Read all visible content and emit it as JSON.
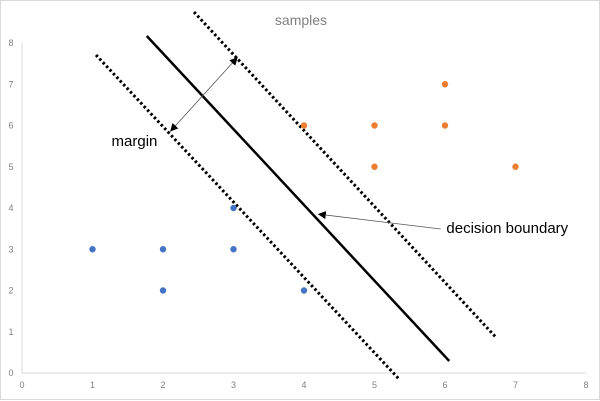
{
  "chart_data": {
    "type": "scatter",
    "title": "samples",
    "xlabel": "",
    "ylabel": "",
    "xlim": [
      0,
      8
    ],
    "ylim": [
      0,
      8
    ],
    "xticks": [
      "0",
      "1",
      "2",
      "3",
      "4",
      "5",
      "6",
      "7",
      "8"
    ],
    "yticks": [
      "0",
      "1",
      "2",
      "3",
      "4",
      "5",
      "6",
      "7",
      "8"
    ],
    "grid": false,
    "series": [
      {
        "color": "#4472c4",
        "points": [
          [
            1,
            3
          ],
          [
            2,
            3
          ],
          [
            2,
            2
          ],
          [
            3,
            3
          ],
          [
            3,
            4
          ],
          [
            4,
            2
          ]
        ]
      },
      {
        "color": "#ed7d31",
        "points": [
          [
            4,
            6
          ],
          [
            5,
            6
          ],
          [
            5,
            5
          ],
          [
            6,
            7
          ],
          [
            6,
            6
          ],
          [
            7,
            5
          ]
        ]
      }
    ],
    "lines": [
      {
        "style": "solid",
        "from": [
          1.77,
          8.17
        ],
        "to": [
          6.06,
          0.29
        ]
      },
      {
        "style": "dotted",
        "from": [
          1.05,
          7.71
        ],
        "to": [
          5.35,
          -0.15
        ]
      },
      {
        "style": "dotted",
        "from": [
          2.44,
          8.75
        ],
        "to": [
          6.72,
          0.87
        ]
      }
    ],
    "annotations": [
      {
        "text": "margin",
        "at": [
          1.27,
          5.5
        ],
        "arrow_from": [
          2.11,
          5.87
        ],
        "arrow_to": [
          3.05,
          7.64
        ],
        "double_headed": true
      },
      {
        "text": "decision boundary",
        "at": [
          6.02,
          3.4
        ],
        "arrow_from": [
          5.94,
          3.49
        ],
        "arrow_to": [
          4.21,
          3.85
        ],
        "double_headed": false
      }
    ]
  }
}
